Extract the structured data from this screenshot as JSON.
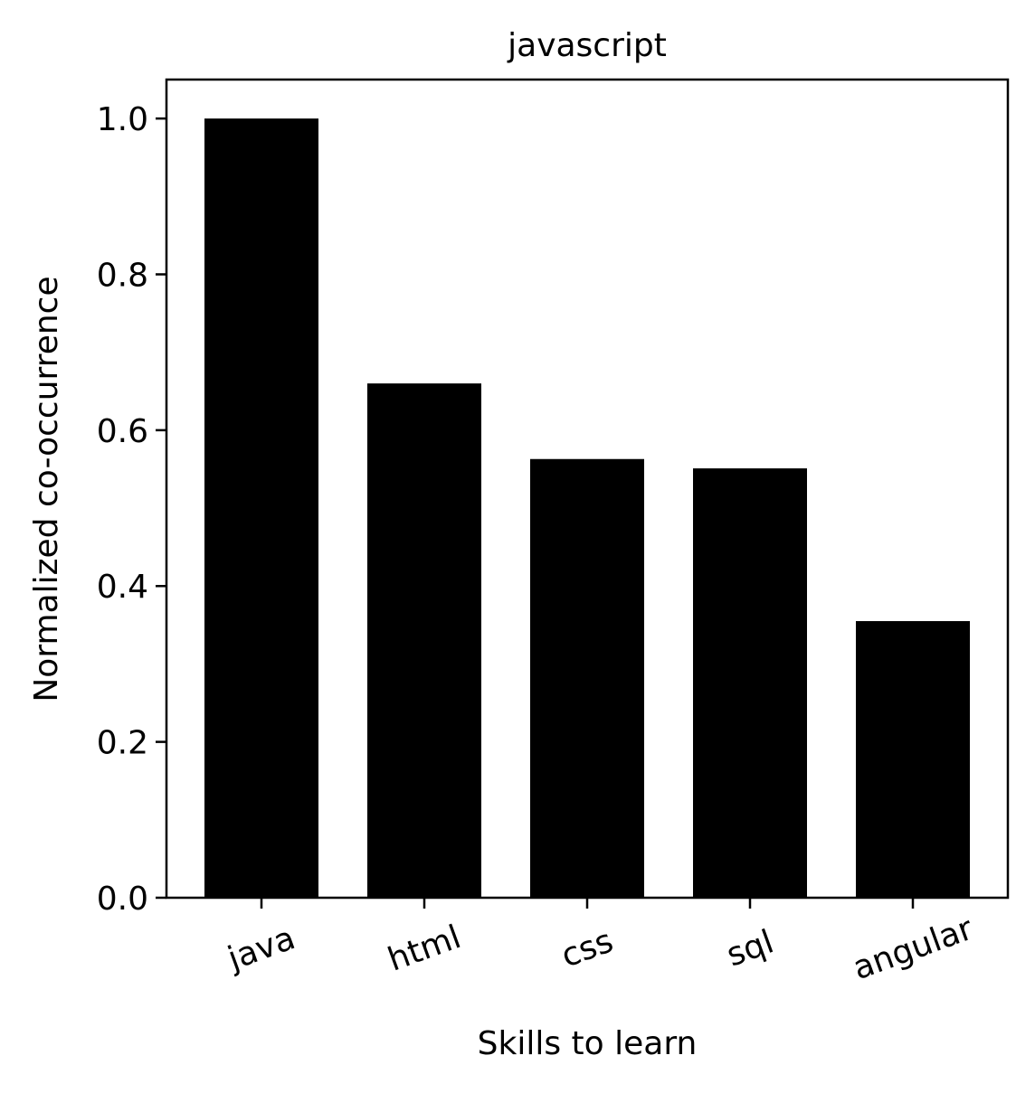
{
  "chart_data": {
    "type": "bar",
    "title": "javascript",
    "xlabel": "Skills to learn",
    "ylabel": "Normalized co-occurrence",
    "categories": [
      "java",
      "html",
      "css",
      "sql",
      "angular"
    ],
    "values": [
      1.0,
      0.66,
      0.563,
      0.551,
      0.355
    ],
    "ylim": [
      0,
      1.05
    ],
    "yticks": [
      "0.0",
      "0.2",
      "0.4",
      "0.6",
      "0.8",
      "1.0"
    ],
    "ytick_values": [
      0,
      0.2,
      0.4,
      0.6,
      0.8,
      1.0
    ],
    "bar_color": "#000000",
    "grid": false,
    "legend": "none"
  }
}
